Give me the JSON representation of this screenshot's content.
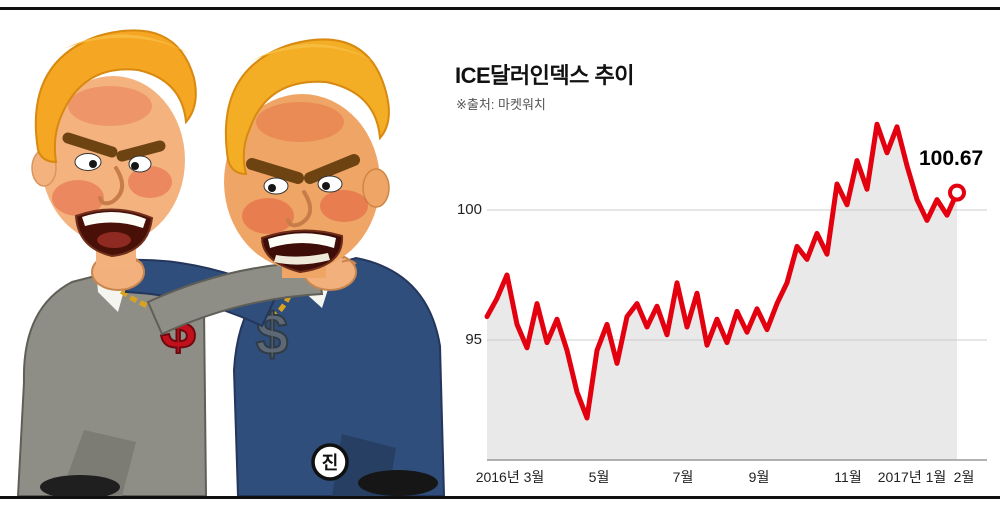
{
  "chart_data": {
    "type": "line",
    "title": "ICE달러인덱스 추이",
    "source": "※출처: 마켓워치",
    "end_label": "100.67",
    "end_value": 100.67,
    "yticks": [
      "100",
      "95"
    ],
    "ylim": [
      90.4,
      104
    ],
    "grid": "horizontal-only",
    "legend": "none",
    "xticks": [
      {
        "label": "2016년 3월",
        "pos": 0.046
      },
      {
        "label": "5월",
        "pos": 0.224
      },
      {
        "label": "7월",
        "pos": 0.392
      },
      {
        "label": "9월",
        "pos": 0.544
      },
      {
        "label": "11월",
        "pos": 0.722
      },
      {
        "label": "2017년 1월",
        "pos": 0.85
      },
      {
        "label": "2월",
        "pos": 0.954
      }
    ],
    "values": [
      95.9,
      96.6,
      97.5,
      95.6,
      94.7,
      96.4,
      94.9,
      95.8,
      94.6,
      93.0,
      92.0,
      94.6,
      95.6,
      94.1,
      95.9,
      96.4,
      95.5,
      96.3,
      95.2,
      97.2,
      95.5,
      96.8,
      94.8,
      95.8,
      94.9,
      96.1,
      95.3,
      96.2,
      95.4,
      96.4,
      97.2,
      98.6,
      98.1,
      99.1,
      98.3,
      101.0,
      100.2,
      101.9,
      100.8,
      103.3,
      102.2,
      103.2,
      101.7,
      100.4,
      99.6,
      100.4,
      99.8,
      100.67
    ],
    "colors": {
      "line": "#e3000f",
      "area": "#e9e9e9",
      "grid": "#cccccc",
      "axis": "#999999",
      "label": "#000000"
    }
  },
  "illustration": {
    "signature": "진",
    "pendant_left": "$",
    "pendant_right": "$"
  }
}
